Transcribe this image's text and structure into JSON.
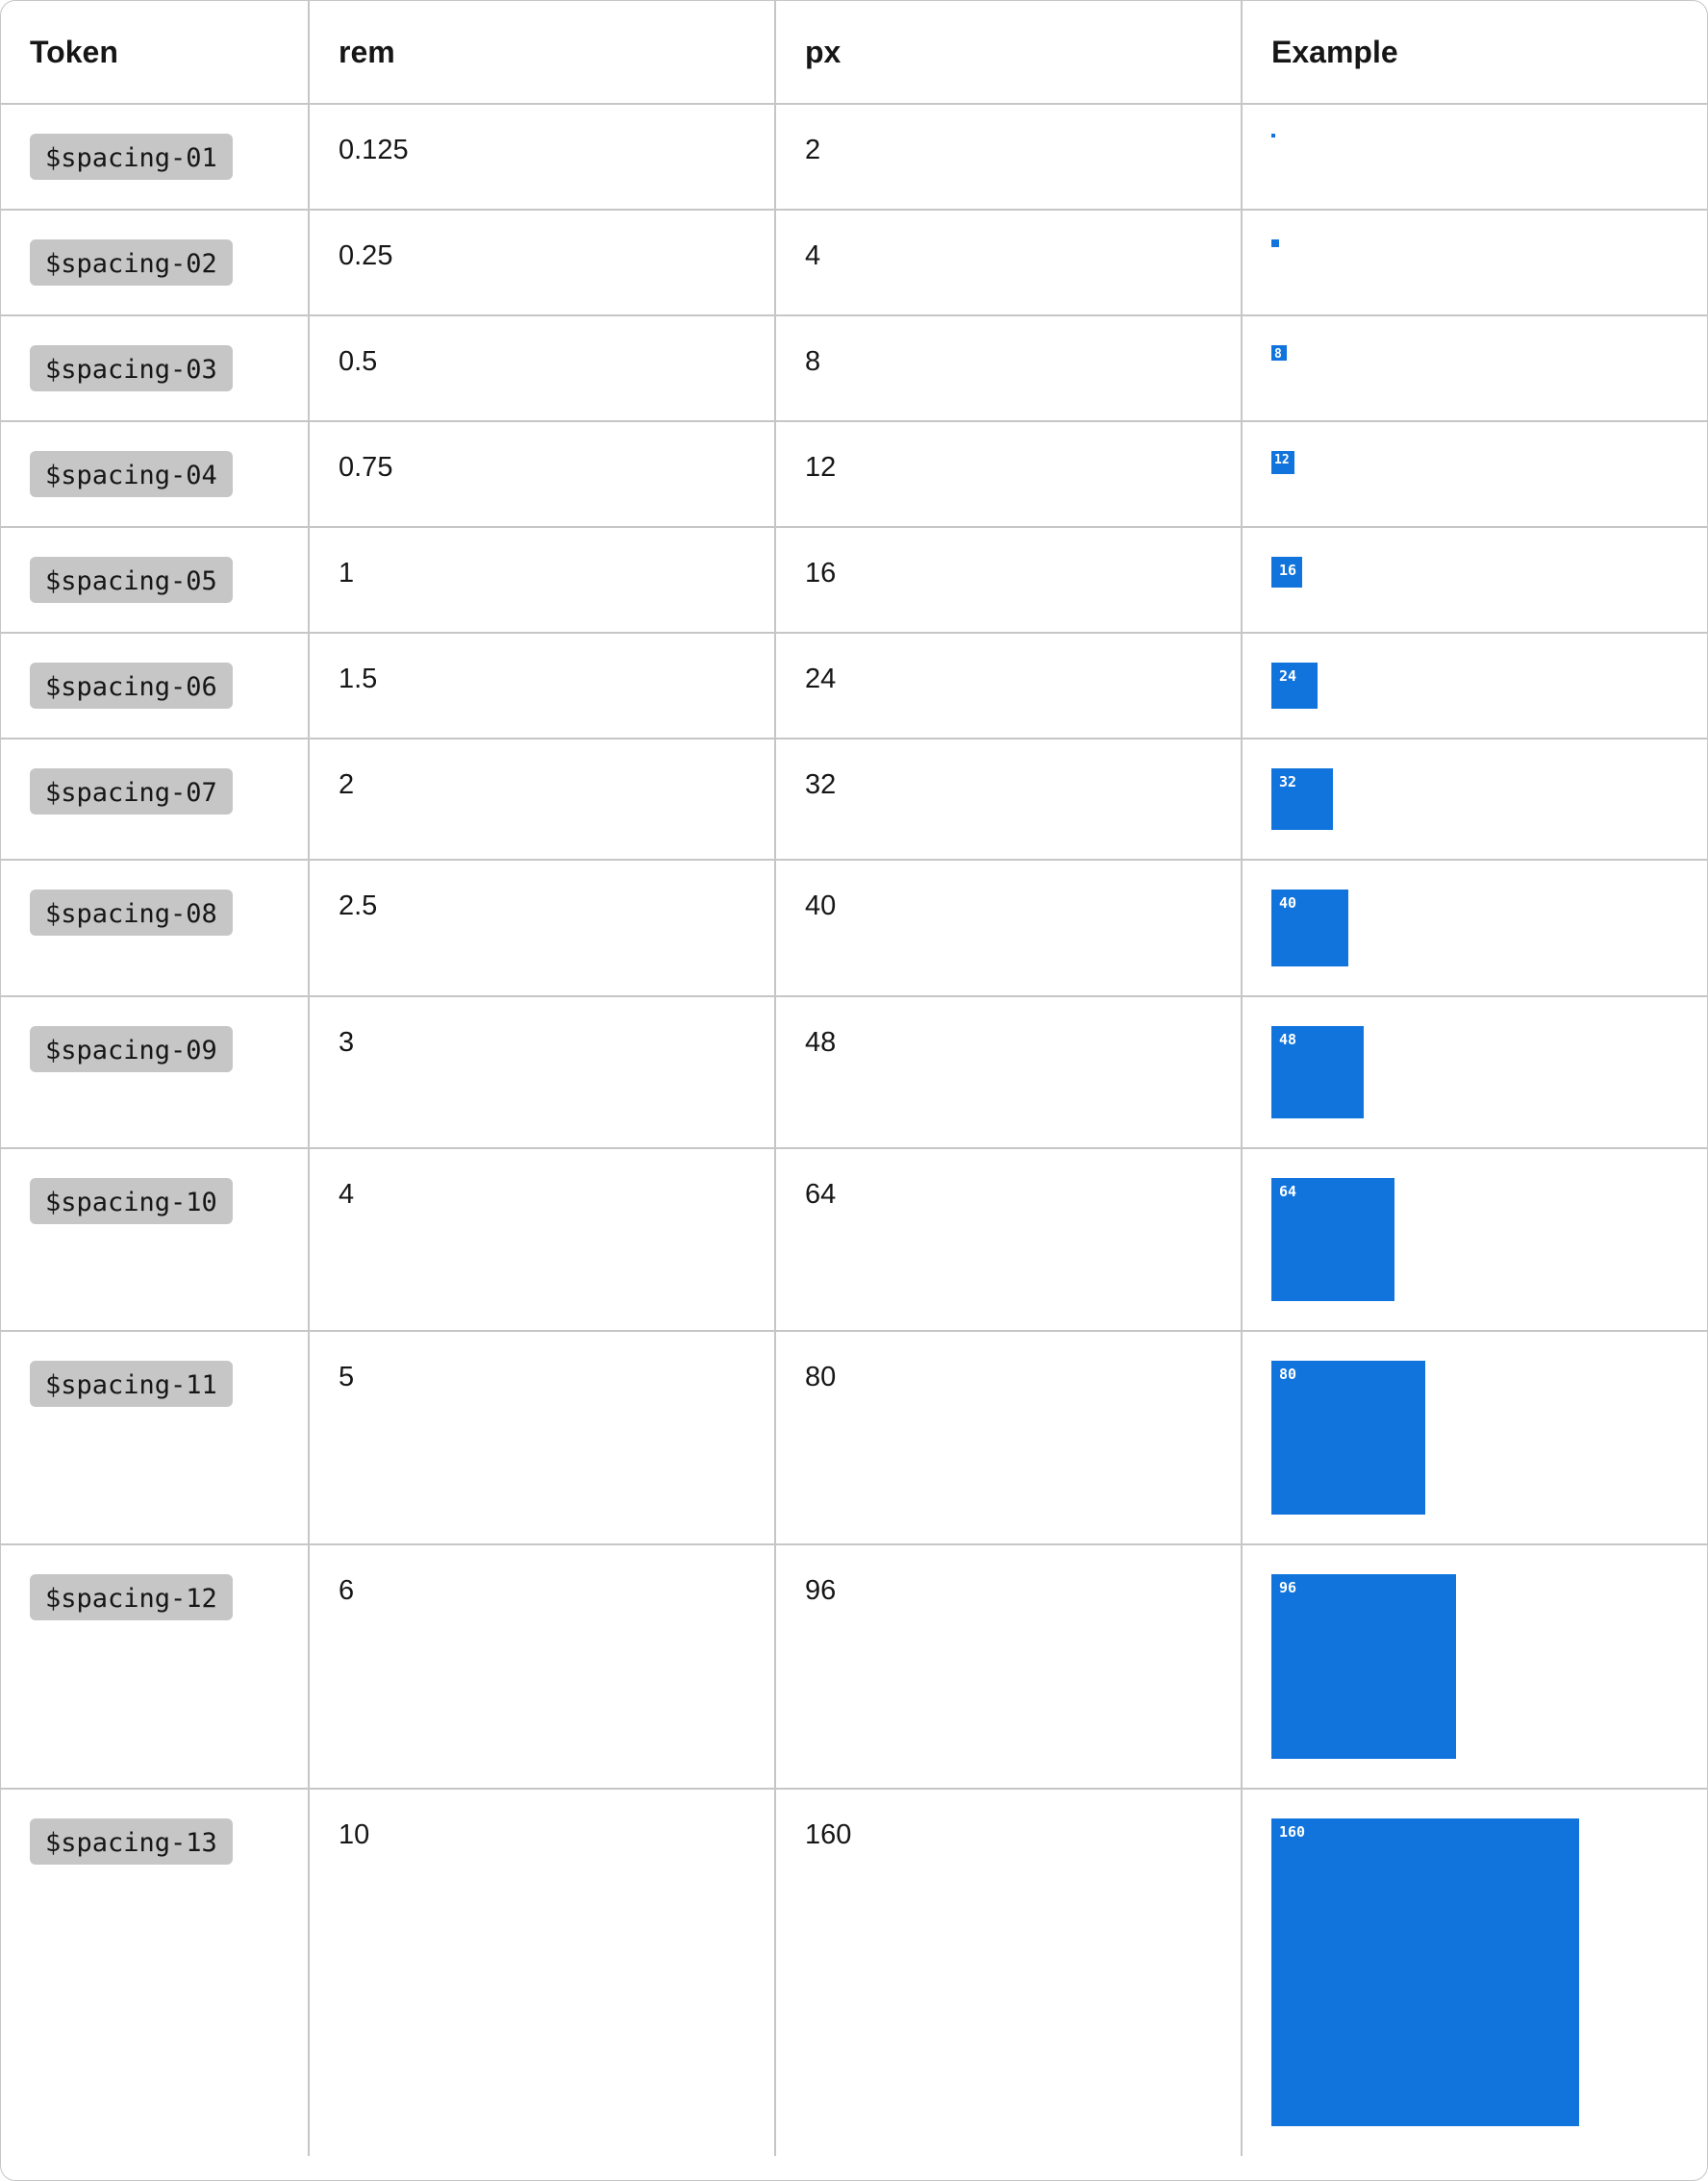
{
  "headers": {
    "token": "Token",
    "rem": "rem",
    "px": "px",
    "example": "Example"
  },
  "rows": [
    {
      "token": "$spacing-01",
      "rem": "0.125",
      "px": "2",
      "label": ""
    },
    {
      "token": "$spacing-02",
      "rem": "0.25",
      "px": "4",
      "label": ""
    },
    {
      "token": "$spacing-03",
      "rem": "0.5",
      "px": "8",
      "label": "8"
    },
    {
      "token": "$spacing-04",
      "rem": "0.75",
      "px": "12",
      "label": "12"
    },
    {
      "token": "$spacing-05",
      "rem": "1",
      "px": "16",
      "label": "16"
    },
    {
      "token": "$spacing-06",
      "rem": "1.5",
      "px": "24",
      "label": "24"
    },
    {
      "token": "$spacing-07",
      "rem": "2",
      "px": "32",
      "label": "32"
    },
    {
      "token": "$spacing-08",
      "rem": "2.5",
      "px": "40",
      "label": "40"
    },
    {
      "token": "$spacing-09",
      "rem": "3",
      "px": "48",
      "label": "48"
    },
    {
      "token": "$spacing-10",
      "rem": "4",
      "px": "64",
      "label": "64"
    },
    {
      "token": "$spacing-11",
      "rem": "5",
      "px": "80",
      "label": "80"
    },
    {
      "token": "$spacing-12",
      "rem": "6",
      "px": "96",
      "label": "96"
    },
    {
      "token": "$spacing-13",
      "rem": "10",
      "px": "160",
      "label": "160"
    }
  ],
  "colors": {
    "swatch": "#1174dd",
    "tag_bg": "#c6c6c6",
    "border": "#c6c6c6"
  }
}
